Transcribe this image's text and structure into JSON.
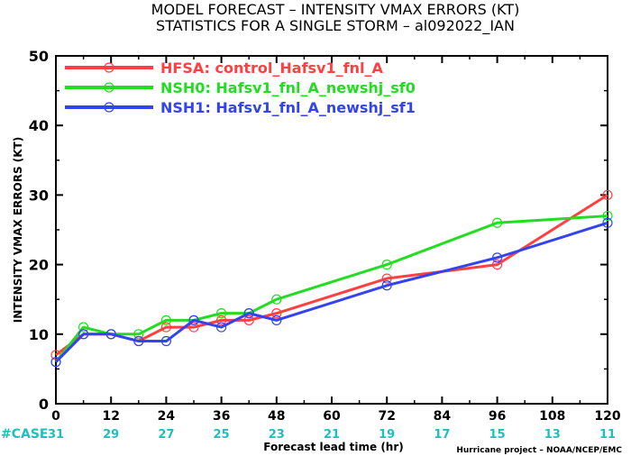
{
  "chart_data": {
    "type": "line",
    "title": "MODEL FORECAST – INTENSITY VMAX ERRORS (KT)",
    "subtitle": "STATISTICS FOR A SINGLE STORM – al092022_IAN",
    "xlabel": "Forecast lead time (hr)",
    "ylabel": "INTENSITY VMAX ERRORS (KT)",
    "xlim": [
      0,
      120
    ],
    "ylim": [
      0,
      50
    ],
    "x_ticks": [
      0,
      12,
      24,
      36,
      48,
      60,
      72,
      84,
      96,
      108,
      120
    ],
    "y_ticks": [
      0,
      10,
      20,
      30,
      40,
      50
    ],
    "grid": false,
    "legend_position": "top-left",
    "case_label": "#CASE",
    "case_x": [
      0,
      12,
      24,
      36,
      48,
      60,
      72,
      84,
      96,
      108,
      120
    ],
    "case_counts": [
      31,
      29,
      27,
      25,
      23,
      21,
      19,
      17,
      15,
      13,
      11
    ],
    "case_color": "#1fbfbf",
    "credit": "Hurricane project – NOAA/NCEP/EMC",
    "series": [
      {
        "name": "HFSA: control_Hafsv1_fnl_A",
        "color": "#ff4040",
        "x": [
          0,
          6,
          12,
          18,
          24,
          30,
          36,
          42,
          48,
          72,
          96,
          120
        ],
        "y": [
          7,
          10,
          10,
          9,
          11,
          11,
          12,
          12,
          13,
          18,
          20,
          30
        ]
      },
      {
        "name": "NSH0: Hafsv1_fnl_A_newshj_sf0",
        "color": "#22dd22",
        "x": [
          0,
          6,
          12,
          18,
          24,
          30,
          36,
          42,
          48,
          72,
          96,
          120
        ],
        "y": [
          6,
          11,
          10,
          10,
          12,
          12,
          13,
          13,
          15,
          20,
          26,
          27
        ]
      },
      {
        "name": "NSH1: Hafsv1_fnl_A_newshj_sf1",
        "color": "#3344ee",
        "x": [
          0,
          6,
          12,
          18,
          24,
          30,
          36,
          42,
          48,
          72,
          96,
          120
        ],
        "y": [
          6,
          10,
          10,
          9,
          9,
          12,
          11,
          13,
          12,
          17,
          21,
          26
        ]
      }
    ]
  }
}
